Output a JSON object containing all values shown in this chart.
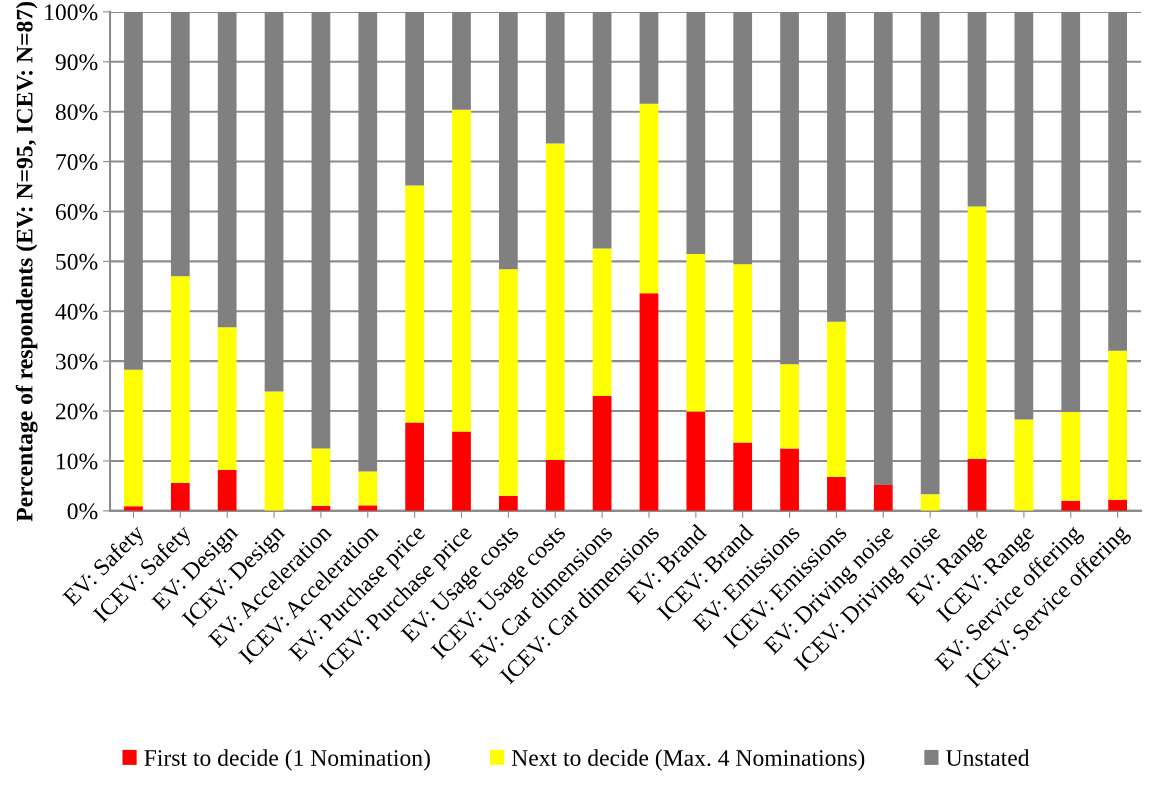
{
  "chart_data": {
    "type": "bar",
    "stacked": true,
    "ylabel": "Percentage of respondents (EV: N=95, ICEV: N=87)",
    "categories": [
      "EV: Safety",
      "ICEV: Safety",
      "EV: Design",
      "ICEV: Design",
      "EV: Acceleration",
      "ICEV: Acceleration",
      "EV: Purchase price",
      "ICEV: Purchase price",
      "EV: Usage costs",
      "ICEV: Usage costs",
      "EV: Car dimensions",
      "ICEV: Car dimensions",
      "EV: Brand",
      "ICEV: Brand",
      "EV: Emissions",
      "ICEV: Emissions",
      "EV: Driving noise",
      "ICEV: Driving noise",
      "EV: Range",
      "ICEV: Range",
      "EV: Service offering",
      "ICEV: Service offering"
    ],
    "series": [
      {
        "name": "First to decide (1 Nomination)",
        "color": "#ff0000",
        "values": [
          0.9,
          5.6,
          8.2,
          0,
          1.0,
          1.1,
          17.7,
          15.9,
          3.0,
          10.2,
          23.0,
          43.6,
          19.9,
          13.7,
          12.5,
          6.8,
          5.2,
          0,
          10.4,
          0,
          2.0,
          2.2
        ]
      },
      {
        "name": "Next to decide (Max. 4 Nominations)",
        "color": "#ffff00",
        "values": [
          27.4,
          41.4,
          28.6,
          23.9,
          11.5,
          6.8,
          47.5,
          64.5,
          45.4,
          63.4,
          29.6,
          38.0,
          31.6,
          35.7,
          16.9,
          31.1,
          0,
          3.3,
          50.6,
          18.3,
          17.8,
          29.9
        ]
      },
      {
        "name": "Unstated",
        "color": "#808080",
        "values": [
          71.7,
          53.0,
          63.2,
          76.1,
          87.5,
          92.1,
          34.8,
          19.6,
          51.6,
          26.4,
          47.4,
          18.4,
          48.5,
          50.6,
          70.6,
          62.1,
          94.8,
          96.7,
          39.0,
          81.7,
          80.2,
          67.9
        ]
      }
    ],
    "ylim": [
      0,
      100
    ],
    "yticks": [
      {
        "value": 0,
        "label": "0%"
      },
      {
        "value": 10,
        "label": "10%"
      },
      {
        "value": 20,
        "label": "20%"
      },
      {
        "value": 30,
        "label": "30%"
      },
      {
        "value": 40,
        "label": "40%"
      },
      {
        "value": 50,
        "label": "50%"
      },
      {
        "value": 60,
        "label": "60%"
      },
      {
        "value": 70,
        "label": "70%"
      },
      {
        "value": 80,
        "label": "80%"
      },
      {
        "value": 90,
        "label": "90%"
      },
      {
        "value": 100,
        "label": "100%"
      }
    ],
    "grid": "y",
    "legend": "bottom"
  }
}
